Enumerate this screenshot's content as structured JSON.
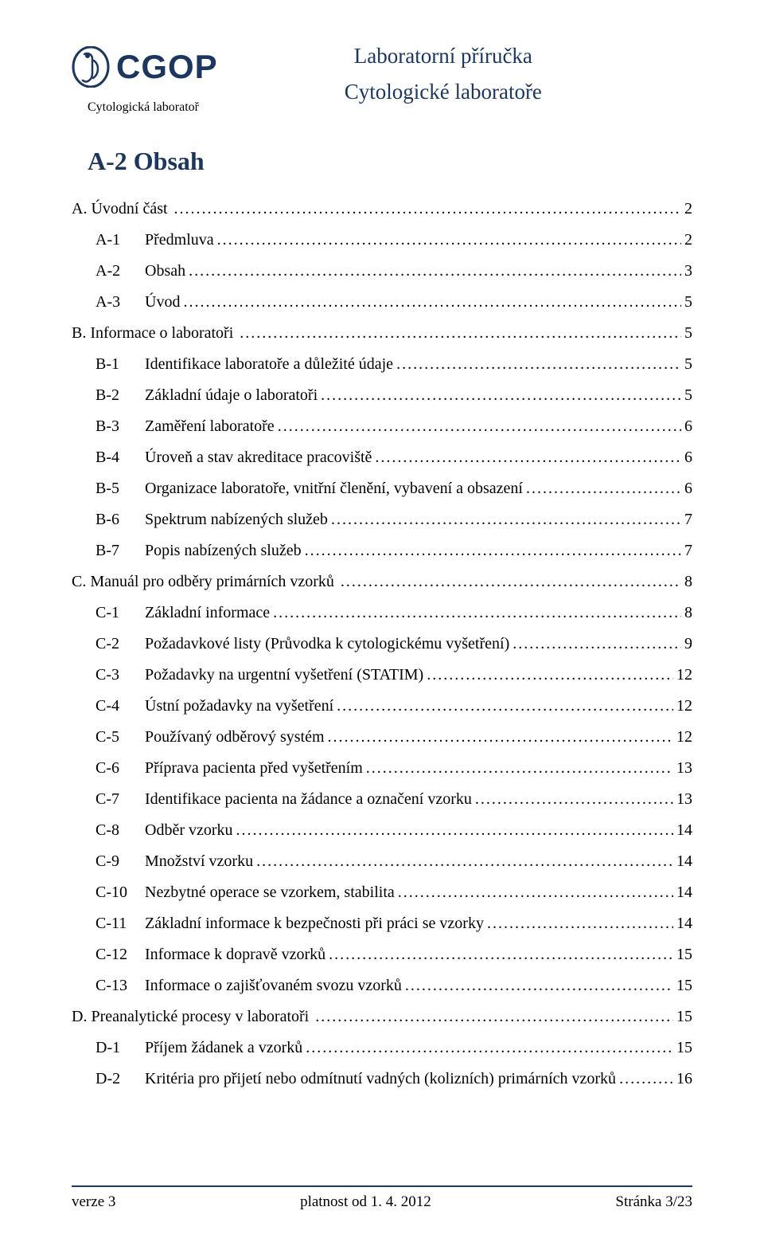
{
  "colors": {
    "brand": "#1b365f",
    "text": "#000000",
    "background": "#ffffff"
  },
  "header": {
    "logo_text": "CGOP",
    "logo_subtitle": "Cytologická laboratoř",
    "title_line1": "Laboratorní příručka",
    "title_line2": "Cytologické laboratoře"
  },
  "heading": "A-2 Obsah",
  "toc": [
    {
      "level": 0,
      "num": "",
      "title": "A. Úvodní část",
      "page": "2"
    },
    {
      "level": 1,
      "num": "A-1",
      "title": "Předmluva",
      "page": "2"
    },
    {
      "level": 1,
      "num": "A-2",
      "title": "Obsah",
      "page": "3"
    },
    {
      "level": 1,
      "num": "A-3",
      "title": "Úvod",
      "page": "5"
    },
    {
      "level": 0,
      "num": "",
      "title": "B. Informace o laboratoři",
      "page": "5"
    },
    {
      "level": 1,
      "num": "B-1",
      "title": "Identifikace laboratoře a důležité údaje",
      "page": "5"
    },
    {
      "level": 1,
      "num": "B-2",
      "title": "Základní údaje o laboratoři",
      "page": "5"
    },
    {
      "level": 1,
      "num": "B-3",
      "title": "Zaměření laboratoře",
      "page": "6"
    },
    {
      "level": 1,
      "num": "B-4",
      "title": "Úroveň a stav akreditace pracoviště",
      "page": "6"
    },
    {
      "level": 1,
      "num": "B-5",
      "title": "Organizace laboratoře, vnitřní členění, vybavení a obsazení",
      "page": "6"
    },
    {
      "level": 1,
      "num": "B-6",
      "title": "Spektrum nabízených služeb",
      "page": "7"
    },
    {
      "level": 1,
      "num": "B-7",
      "title": "Popis nabízených služeb",
      "page": "7"
    },
    {
      "level": 0,
      "num": "",
      "title": "C. Manuál pro odběry primárních vzorků",
      "page": "8"
    },
    {
      "level": 1,
      "num": "C-1",
      "title": "Základní informace",
      "page": "8"
    },
    {
      "level": 1,
      "num": "C-2",
      "title": "Požadavkové listy (Průvodka k cytologickému vyšetření)",
      "page": "9"
    },
    {
      "level": 1,
      "num": "C-3",
      "title": "Požadavky na urgentní vyšetření (STATIM)",
      "page": "12"
    },
    {
      "level": 1,
      "num": "C-4",
      "title": "Ústní požadavky na vyšetření",
      "page": "12"
    },
    {
      "level": 1,
      "num": "C-5",
      "title": "Používaný odběrový systém",
      "page": "12"
    },
    {
      "level": 1,
      "num": "C-6",
      "title": "Příprava pacienta před vyšetřením",
      "page": "13"
    },
    {
      "level": 1,
      "num": "C-7",
      "title": "Identifikace pacienta na žádance a označení vzorku",
      "page": "13"
    },
    {
      "level": 1,
      "num": "C-8",
      "title": "Odběr vzorku",
      "page": "14"
    },
    {
      "level": 1,
      "num": "C-9",
      "title": "Množství vzorku",
      "page": "14"
    },
    {
      "level": 1,
      "num": "C-10",
      "title": "Nezbytné operace se vzorkem, stabilita",
      "page": "14"
    },
    {
      "level": 1,
      "num": "C-11",
      "title": "Základní informace k bezpečnosti při práci se vzorky",
      "page": "14"
    },
    {
      "level": 1,
      "num": "C-12",
      "title": "Informace k dopravě vzorků",
      "page": "15"
    },
    {
      "level": 1,
      "num": "C-13",
      "title": "Informace o zajišťovaném svozu vzorků",
      "page": "15"
    },
    {
      "level": 0,
      "num": "",
      "title": "D. Preanalytické procesy v laboratoři",
      "page": "15"
    },
    {
      "level": 1,
      "num": "D-1",
      "title": "Příjem žádanek a vzorků",
      "page": "15"
    },
    {
      "level": 1,
      "num": "D-2",
      "title": "Kritéria pro přijetí nebo odmítnutí vadných (kolizních) primárních vzorků",
      "page": "16"
    }
  ],
  "footer": {
    "left": "verze 3",
    "center": "platnost od 1. 4. 2012",
    "right": "Stránka 3/23"
  }
}
